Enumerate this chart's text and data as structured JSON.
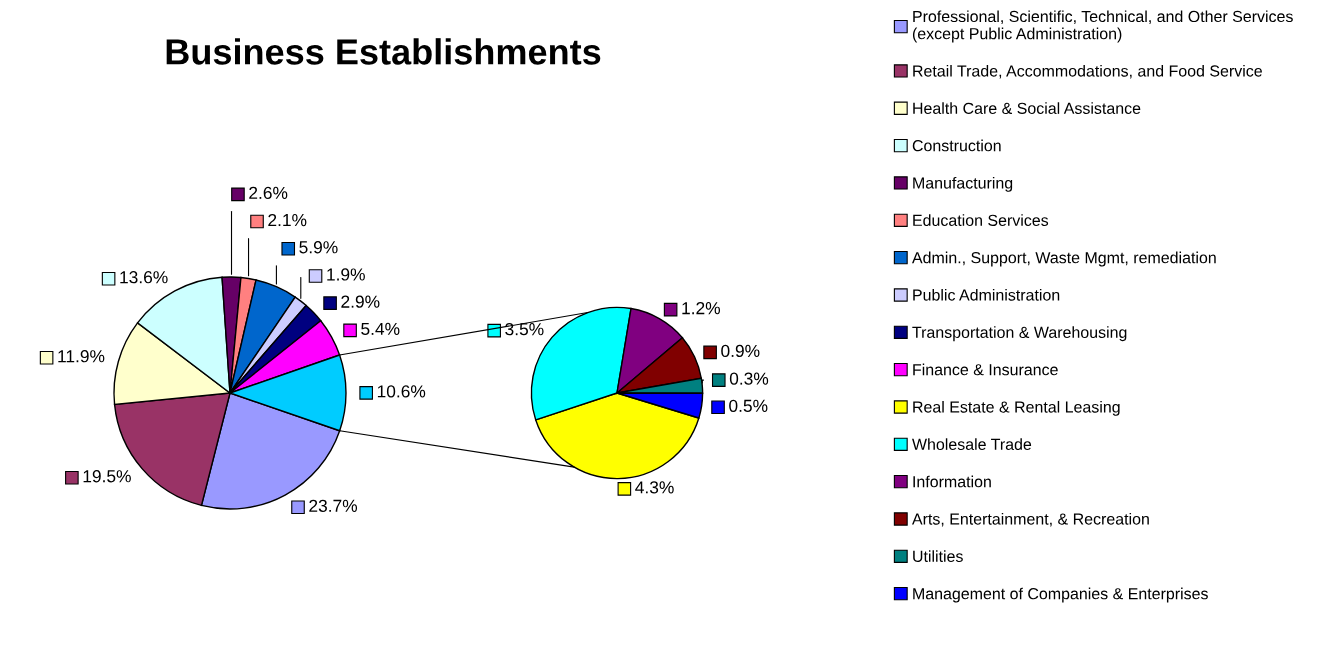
{
  "chart_data": [
    {
      "type": "pie",
      "title": "Business Establishments",
      "legend": "right",
      "categories": [
        "Professional, Scientific, Technical, and Other Services\n(except Public Administration)",
        "Retail Trade, Accommodations, and Food Service",
        "Health Care & Social Assistance",
        "Construction",
        "Manufacturing",
        "Education Services",
        "Admin., Support, Waste Mgmt, remediation",
        "Public Administration",
        "Transportation & Warehousing",
        "Finance & Insurance",
        null
      ],
      "values": [
        23.7,
        19.5,
        11.9,
        13.6,
        2.6,
        2.1,
        5.9,
        1.9,
        2.9,
        5.4,
        10.6
      ],
      "value_labels": [
        "23.7%",
        "19.5%",
        "11.9%",
        "13.6%",
        "2.6%",
        "2.1%",
        "5.9%",
        "1.9%",
        "2.9%",
        "5.4%",
        "10.6%"
      ],
      "colors": [
        "#9999ff",
        "#993366",
        "#ffffcc",
        "#ccffff",
        "#660066",
        "#ff8080",
        "#0066cc",
        "#ccccff",
        "#000080",
        "#ff00ff",
        "#00ccff"
      ]
    },
    {
      "type": "pie",
      "legend": "right",
      "categories": [
        "Real Estate & Rental Leasing",
        "Wholesale Trade",
        "Information",
        "Arts, Entertainment, & Recreation",
        "Utilities",
        "Management of Companies & Enterprises"
      ],
      "values": [
        4.3,
        3.5,
        1.2,
        0.9,
        0.3,
        0.5
      ],
      "value_labels": [
        "4.3%",
        "3.5%",
        "1.2%",
        "0.9%",
        "0.3%",
        "0.5%"
      ],
      "colors": [
        "#ffff00",
        "#00ffff",
        "#800080",
        "#800000",
        "#008080",
        "#0000ff"
      ]
    }
  ]
}
